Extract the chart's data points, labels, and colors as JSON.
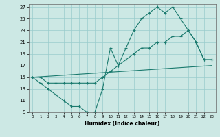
{
  "xlabel": "Humidex (Indice chaleur)",
  "bg_color": "#cce8e4",
  "grid_color": "#99cccc",
  "line_color": "#1a7a6e",
  "xlim": [
    -0.5,
    23.5
  ],
  "ylim": [
    9,
    27.5
  ],
  "xticks": [
    0,
    1,
    2,
    3,
    4,
    5,
    6,
    7,
    8,
    9,
    10,
    11,
    12,
    13,
    14,
    15,
    16,
    17,
    18,
    19,
    20,
    21,
    22,
    23
  ],
  "yticks": [
    9,
    11,
    13,
    15,
    17,
    19,
    21,
    23,
    25,
    27
  ],
  "line1_jagged": {
    "x": [
      0,
      1,
      2,
      3,
      4,
      5,
      6,
      7,
      8,
      9,
      10,
      11,
      12,
      13,
      14,
      15,
      16,
      17,
      18,
      19,
      20,
      21,
      22,
      23
    ],
    "y": [
      15,
      14,
      13,
      12,
      11,
      10,
      10,
      9,
      9,
      13,
      20,
      17,
      20,
      23,
      25,
      26,
      27,
      26,
      27,
      25,
      23,
      21,
      18,
      18
    ]
  },
  "line2_mid": {
    "x": [
      0,
      1,
      2,
      3,
      4,
      5,
      6,
      7,
      8,
      9,
      10,
      11,
      12,
      13,
      14,
      15,
      16,
      17,
      18,
      19,
      20,
      21,
      22,
      23
    ],
    "y": [
      15,
      15,
      14,
      14,
      14,
      14,
      14,
      14,
      14,
      15,
      16,
      17,
      18,
      19,
      20,
      20,
      21,
      21,
      22,
      22,
      23,
      21,
      18,
      18
    ]
  },
  "line3_flat": {
    "x": [
      0,
      23
    ],
    "y": [
      15,
      17
    ]
  }
}
